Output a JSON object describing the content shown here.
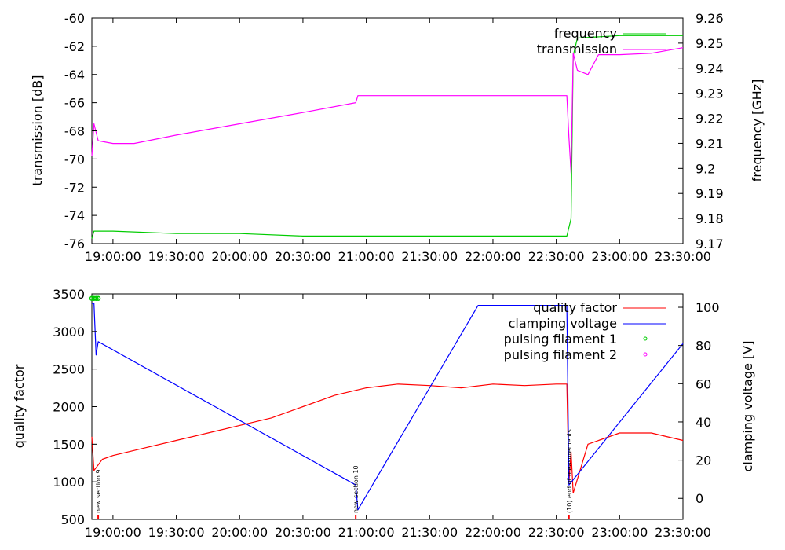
{
  "chart_data": [
    {
      "type": "line",
      "ylabel": "transmission [dB]",
      "y2label": "frequency [GHz]",
      "xlim": [
        "18:50:00",
        "23:30:00"
      ],
      "ylim": [
        -76,
        -60
      ],
      "y2lim": [
        9.17,
        9.26
      ],
      "x_ticks": [
        "19:00:00",
        "19:30:00",
        "20:00:00",
        "20:30:00",
        "21:00:00",
        "21:30:00",
        "22:00:00",
        "22:30:00",
        "23:00:00",
        "23:30:00"
      ],
      "y_ticks": [
        -60,
        -62,
        -64,
        -66,
        -68,
        -70,
        -72,
        -74,
        -76
      ],
      "y2_ticks": [
        9.26,
        9.25,
        9.24,
        9.23,
        9.22,
        9.21,
        9.2,
        9.19,
        9.18,
        9.17
      ],
      "legend_position": "top-right",
      "series": [
        {
          "name": "frequency",
          "axis": "y2",
          "color": "#00cc00",
          "x": [
            "18:50:00",
            "18:51:00",
            "19:00:00",
            "19:30:00",
            "20:00:00",
            "20:30:00",
            "21:00:00",
            "21:30:00",
            "22:00:00",
            "22:30:00",
            "22:35:00",
            "22:37:00",
            "22:38:00",
            "22:40:00",
            "23:00:00",
            "23:30:00"
          ],
          "values": [
            9.172,
            9.175,
            9.175,
            9.174,
            9.174,
            9.173,
            9.173,
            9.173,
            9.173,
            9.173,
            9.173,
            9.18,
            9.245,
            9.252,
            9.253,
            9.253
          ]
        },
        {
          "name": "transmission",
          "axis": "y",
          "color": "#ff00ff",
          "x": [
            "18:50:00",
            "18:51:00",
            "18:53:00",
            "19:00:00",
            "19:10:00",
            "19:30:00",
            "20:00:00",
            "20:30:00",
            "20:55:00",
            "20:56:00",
            "21:30:00",
            "22:00:00",
            "22:30:00",
            "22:35:00",
            "22:36:00",
            "22:37:00",
            "22:38:00",
            "22:40:00",
            "22:45:00",
            "22:50:00",
            "23:00:00",
            "23:15:00",
            "23:30:00"
          ],
          "values": [
            -69.8,
            -67.5,
            -68.7,
            -68.9,
            -68.9,
            -68.3,
            -67.5,
            -66.7,
            -66.0,
            -65.5,
            -65.5,
            -65.5,
            -65.5,
            -65.5,
            -68.5,
            -71.0,
            -62.5,
            -63.7,
            -64.0,
            -62.6,
            -62.6,
            -62.5,
            -62.1
          ]
        }
      ]
    },
    {
      "type": "line",
      "ylabel": "quality factor",
      "y2label": "clamping voltage [V]",
      "xlim": [
        "18:50:00",
        "23:30:00"
      ],
      "ylim": [
        500,
        3500
      ],
      "y2lim": [
        -11,
        107
      ],
      "x_ticks": [
        "19:00:00",
        "19:30:00",
        "20:00:00",
        "20:30:00",
        "21:00:00",
        "21:30:00",
        "22:00:00",
        "22:30:00",
        "23:00:00",
        "23:30:00"
      ],
      "y_ticks": [
        3500,
        3000,
        2500,
        2000,
        1500,
        1000,
        500
      ],
      "y2_ticks": [
        100,
        80,
        60,
        40,
        20,
        0
      ],
      "legend_position": "top-right",
      "series": [
        {
          "name": "quality factor",
          "axis": "y",
          "color": "#ff0000",
          "x": [
            "18:50:00",
            "18:51:00",
            "18:55:00",
            "19:00:00",
            "19:15:00",
            "19:30:00",
            "19:45:00",
            "20:00:00",
            "20:15:00",
            "20:30:00",
            "20:45:00",
            "21:00:00",
            "21:15:00",
            "21:30:00",
            "21:45:00",
            "22:00:00",
            "22:15:00",
            "22:30:00",
            "22:35:00",
            "22:36:00",
            "22:37:00",
            "22:38:00",
            "22:45:00",
            "23:00:00",
            "23:15:00",
            "23:30:00"
          ],
          "values": [
            1600,
            1150,
            1300,
            1350,
            1450,
            1550,
            1650,
            1750,
            1850,
            2000,
            2150,
            2250,
            2300,
            2280,
            2250,
            2300,
            2280,
            2300,
            2300,
            1000,
            1400,
            850,
            1500,
            1650,
            1650,
            1550
          ]
        },
        {
          "name": "clamping voltage",
          "axis": "y2",
          "color": "#0000ff",
          "x": [
            "18:50:00",
            "18:51:00",
            "18:52:00",
            "18:53:00",
            "20:55:00",
            "20:56:00",
            "21:53:00",
            "22:35:00",
            "22:36:00",
            "23:30:00"
          ],
          "values": [
            102,
            102,
            75,
            82,
            7,
            -6,
            101,
            101,
            7,
            81
          ]
        },
        {
          "name": "pulsing filament 1",
          "axis": "y",
          "color": "#00cc00",
          "marker": "circle",
          "x": [
            "18:50:00",
            "18:51:00",
            "18:52:00",
            "18:53:00"
          ],
          "values": [
            3440,
            3440,
            3440,
            3440
          ]
        },
        {
          "name": "pulsing filament 2",
          "axis": "y",
          "color": "#ff00ff",
          "marker": "circle",
          "x": [],
          "values": []
        }
      ],
      "annotations": [
        {
          "text": "new section 9",
          "x": "18:53:00"
        },
        {
          "text": "new section 10",
          "x": "20:55:00"
        },
        {
          "text": "(10) end of measurements",
          "x": "22:36:00"
        }
      ]
    }
  ]
}
